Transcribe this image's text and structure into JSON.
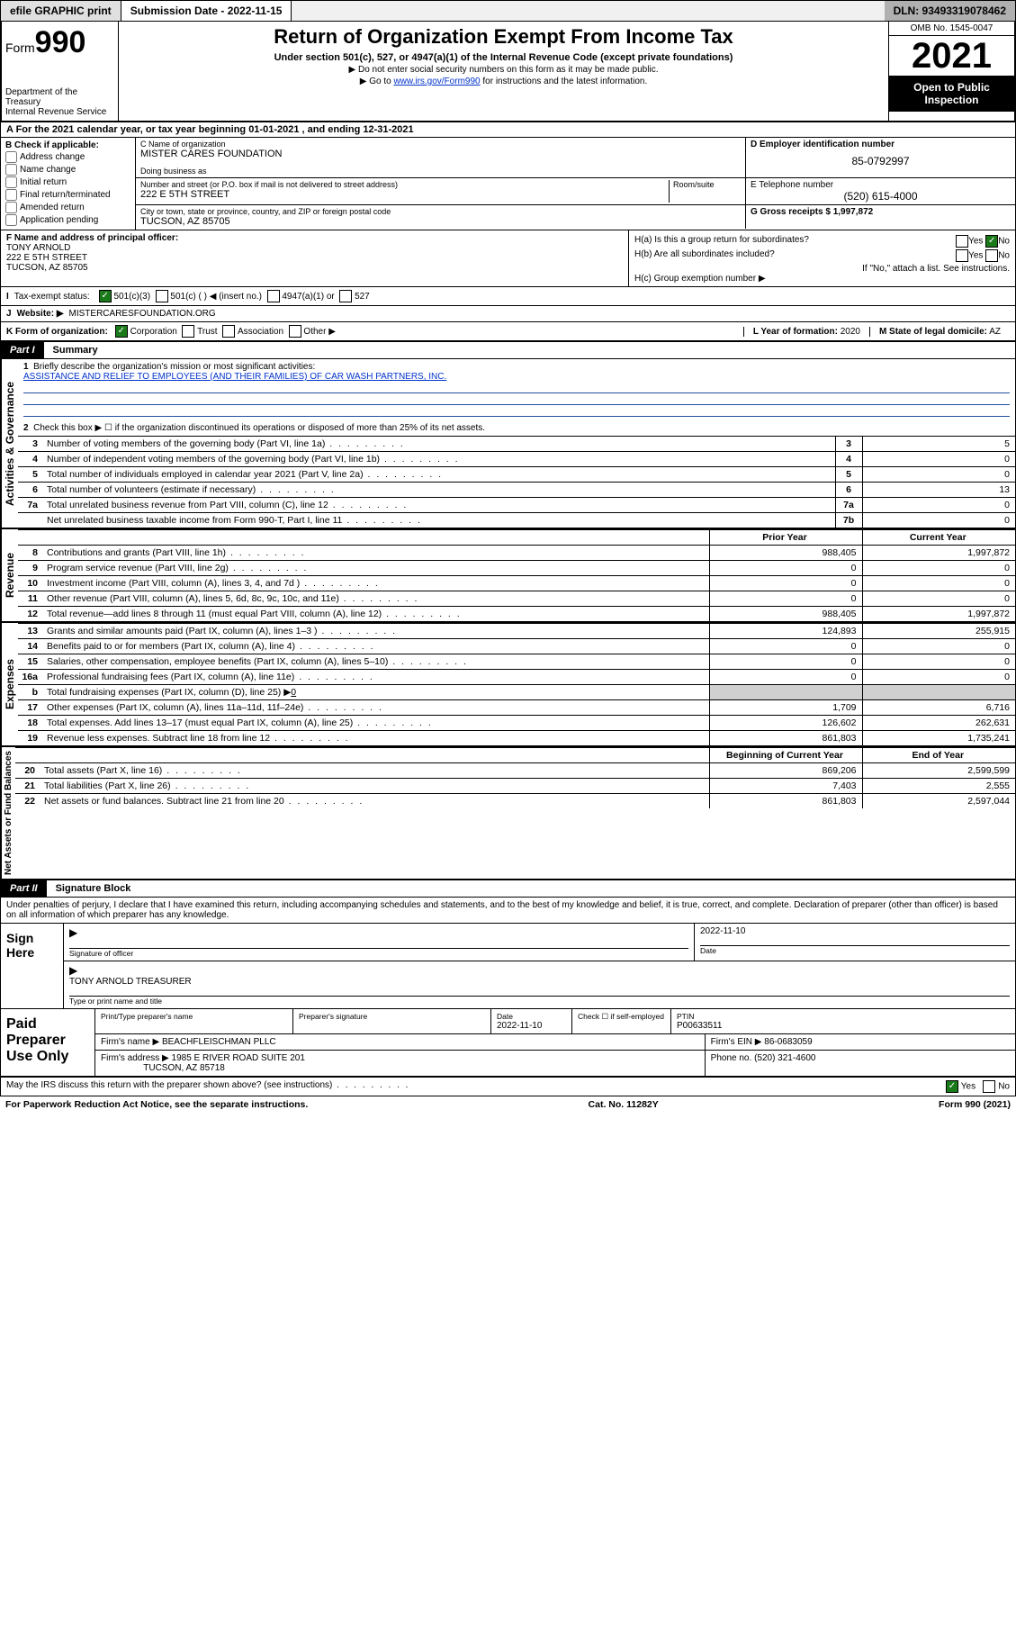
{
  "topbar": {
    "efile": "efile GRAPHIC print",
    "submission": "Submission Date - 2022-11-15",
    "dln": "DLN: 93493319078462"
  },
  "header": {
    "form_label": "Form",
    "form_no": "990",
    "dept": "Department of the Treasury",
    "irs": "Internal Revenue Service",
    "title": "Return of Organization Exempt From Income Tax",
    "sub1": "Under section 501(c), 527, or 4947(a)(1) of the Internal Revenue Code (except private foundations)",
    "sub2": "▶ Do not enter social security numbers on this form as it may be made public.",
    "sub3_pre": "▶ Go to ",
    "sub3_link": "www.irs.gov/Form990",
    "sub3_post": " for instructions and the latest information.",
    "omb": "OMB No. 1545-0047",
    "year": "2021",
    "open": "Open to Public Inspection"
  },
  "lineA": "A For the 2021 calendar year, or tax year beginning 01-01-2021   , and ending 12-31-2021",
  "boxB": {
    "title": "B Check if applicable:",
    "addr": "Address change",
    "name": "Name change",
    "init": "Initial return",
    "final": "Final return/terminated",
    "amend": "Amended return",
    "app": "Application pending"
  },
  "boxC": {
    "name_lab": "C Name of organization",
    "name": "MISTER CARES FOUNDATION",
    "dba_lab": "Doing business as",
    "dba": "",
    "street_lab": "Number and street (or P.O. box if mail is not delivered to street address)",
    "room_lab": "Room/suite",
    "street": "222 E 5TH STREET",
    "city_lab": "City or town, state or province, country, and ZIP or foreign postal code",
    "city": "TUCSON, AZ  85705"
  },
  "boxD": {
    "lab": "D Employer identification number",
    "val": "85-0792997"
  },
  "boxE": {
    "lab": "E Telephone number",
    "val": "(520) 615-4000"
  },
  "boxG": {
    "lab": "G Gross receipts $",
    "val": "1,997,872"
  },
  "boxF": {
    "lab": "F Name and address of principal officer:",
    "name": "TONY ARNOLD",
    "street": "222 E 5TH STREET",
    "city": "TUCSON, AZ  85705"
  },
  "boxH": {
    "ha": "H(a)  Is this a group return for subordinates?",
    "hb": "H(b)  Are all subordinates included?",
    "hb_note": "If \"No,\" attach a list. See instructions.",
    "hc": "H(c)  Group exemption number ▶",
    "yes": "Yes",
    "no": "No"
  },
  "rowI": {
    "lab": "Tax-exempt status:",
    "c3": "501(c)(3)",
    "c": "501(c) (  ) ◀ (insert no.)",
    "a1": "4947(a)(1) or",
    "s527": "527"
  },
  "rowJ": {
    "lab": "Website: ▶",
    "val": "MISTERCARESFOUNDATION.ORG"
  },
  "rowK": {
    "lab": "K Form of organization:",
    "corp": "Corporation",
    "trust": "Trust",
    "assoc": "Association",
    "other": "Other ▶"
  },
  "rowL": {
    "lab": "L Year of formation:",
    "val": "2020"
  },
  "rowM": {
    "lab": "M State of legal domicile:",
    "val": "AZ"
  },
  "part1": {
    "tag": "Part I",
    "title": "Summary"
  },
  "activities": {
    "side": "Activities & Governance",
    "l1": "Briefly describe the organization's mission or most significant activities:",
    "l1_text": "ASSISTANCE AND RELIEF TO EMPLOYEES (AND THEIR FAMILIES) OF CAR WASH PARTNERS, INC.",
    "l2": "Check this box ▶ ☐  if the organization discontinued its operations or disposed of more than 25% of its net assets.",
    "rows": [
      {
        "n": "3",
        "d": "Number of voting members of the governing body (Part VI, line 1a)",
        "b": "3",
        "v": "5"
      },
      {
        "n": "4",
        "d": "Number of independent voting members of the governing body (Part VI, line 1b)",
        "b": "4",
        "v": "0"
      },
      {
        "n": "5",
        "d": "Total number of individuals employed in calendar year 2021 (Part V, line 2a)",
        "b": "5",
        "v": "0"
      },
      {
        "n": "6",
        "d": "Total number of volunteers (estimate if necessary)",
        "b": "6",
        "v": "13"
      },
      {
        "n": "7a",
        "d": "Total unrelated business revenue from Part VIII, column (C), line 12",
        "b": "7a",
        "v": "0"
      },
      {
        "n": "",
        "d": "Net unrelated business taxable income from Form 990-T, Part I, line 11",
        "b": "7b",
        "v": "0"
      }
    ]
  },
  "revenue": {
    "side": "Revenue",
    "hdr_prior": "Prior Year",
    "hdr_curr": "Current Year",
    "rows": [
      {
        "n": "8",
        "d": "Contributions and grants (Part VIII, line 1h)",
        "p": "988,405",
        "c": "1,997,872"
      },
      {
        "n": "9",
        "d": "Program service revenue (Part VIII, line 2g)",
        "p": "0",
        "c": "0"
      },
      {
        "n": "10",
        "d": "Investment income (Part VIII, column (A), lines 3, 4, and 7d )",
        "p": "0",
        "c": "0"
      },
      {
        "n": "11",
        "d": "Other revenue (Part VIII, column (A), lines 5, 6d, 8c, 9c, 10c, and 11e)",
        "p": "0",
        "c": "0"
      },
      {
        "n": "12",
        "d": "Total revenue—add lines 8 through 11 (must equal Part VIII, column (A), line 12)",
        "p": "988,405",
        "c": "1,997,872"
      }
    ]
  },
  "expenses": {
    "side": "Expenses",
    "rows": [
      {
        "n": "13",
        "d": "Grants and similar amounts paid (Part IX, column (A), lines 1–3 )",
        "p": "124,893",
        "c": "255,915"
      },
      {
        "n": "14",
        "d": "Benefits paid to or for members (Part IX, column (A), line 4)",
        "p": "0",
        "c": "0"
      },
      {
        "n": "15",
        "d": "Salaries, other compensation, employee benefits (Part IX, column (A), lines 5–10)",
        "p": "0",
        "c": "0"
      },
      {
        "n": "16a",
        "d": "Professional fundraising fees (Part IX, column (A), line 11e)",
        "p": "0",
        "c": "0"
      }
    ],
    "l16b_pre": "Total fundraising expenses (Part IX, column (D), line 25) ▶",
    "l16b_val": "0",
    "rows2": [
      {
        "n": "17",
        "d": "Other expenses (Part IX, column (A), lines 11a–11d, 11f–24e)",
        "p": "1,709",
        "c": "6,716"
      },
      {
        "n": "18",
        "d": "Total expenses. Add lines 13–17 (must equal Part IX, column (A), line 25)",
        "p": "126,602",
        "c": "262,631"
      },
      {
        "n": "19",
        "d": "Revenue less expenses. Subtract line 18 from line 12",
        "p": "861,803",
        "c": "1,735,241"
      }
    ]
  },
  "netassets": {
    "side": "Net Assets or Fund Balances",
    "hdr_beg": "Beginning of Current Year",
    "hdr_end": "End of Year",
    "rows": [
      {
        "n": "20",
        "d": "Total assets (Part X, line 16)",
        "p": "869,206",
        "c": "2,599,599"
      },
      {
        "n": "21",
        "d": "Total liabilities (Part X, line 26)",
        "p": "7,403",
        "c": "2,555"
      },
      {
        "n": "22",
        "d": "Net assets or fund balances. Subtract line 21 from line 20",
        "p": "861,803",
        "c": "2,597,044"
      }
    ]
  },
  "part2": {
    "tag": "Part II",
    "title": "Signature Block"
  },
  "sig": {
    "decl": "Under penalties of perjury, I declare that I have examined this return, including accompanying schedules and statements, and to the best of my knowledge and belief, it is true, correct, and complete. Declaration of preparer (other than officer) is based on all information of which preparer has any knowledge.",
    "sign_here": "Sign Here",
    "sig_officer": "Signature of officer",
    "date_lab": "Date",
    "date": "2022-11-10",
    "name_title": "TONY ARNOLD  TREASURER",
    "name_title_lab": "Type or print name and title"
  },
  "paid": {
    "label": "Paid Preparer Use Only",
    "h_name": "Print/Type preparer's name",
    "h_sig": "Preparer's signature",
    "h_date": "Date",
    "date": "2022-11-10",
    "h_check": "Check ☐ if self-employed",
    "h_ptin": "PTIN",
    "ptin": "P00633511",
    "firm_name_lab": "Firm's name   ▶",
    "firm_name": "BEACHFLEISCHMAN PLLC",
    "firm_ein_lab": "Firm's EIN ▶",
    "firm_ein": "86-0683059",
    "firm_addr_lab": "Firm's address ▶",
    "firm_addr1": "1985 E RIVER ROAD SUITE 201",
    "firm_addr2": "TUCSON, AZ  85718",
    "phone_lab": "Phone no.",
    "phone": "(520) 321-4600"
  },
  "footer": {
    "discuss": "May the IRS discuss this return with the preparer shown above? (see instructions)",
    "yes": "Yes",
    "no": "No",
    "pra": "For Paperwork Reduction Act Notice, see the separate instructions.",
    "cat": "Cat. No. 11282Y",
    "form": "Form 990 (2021)"
  }
}
